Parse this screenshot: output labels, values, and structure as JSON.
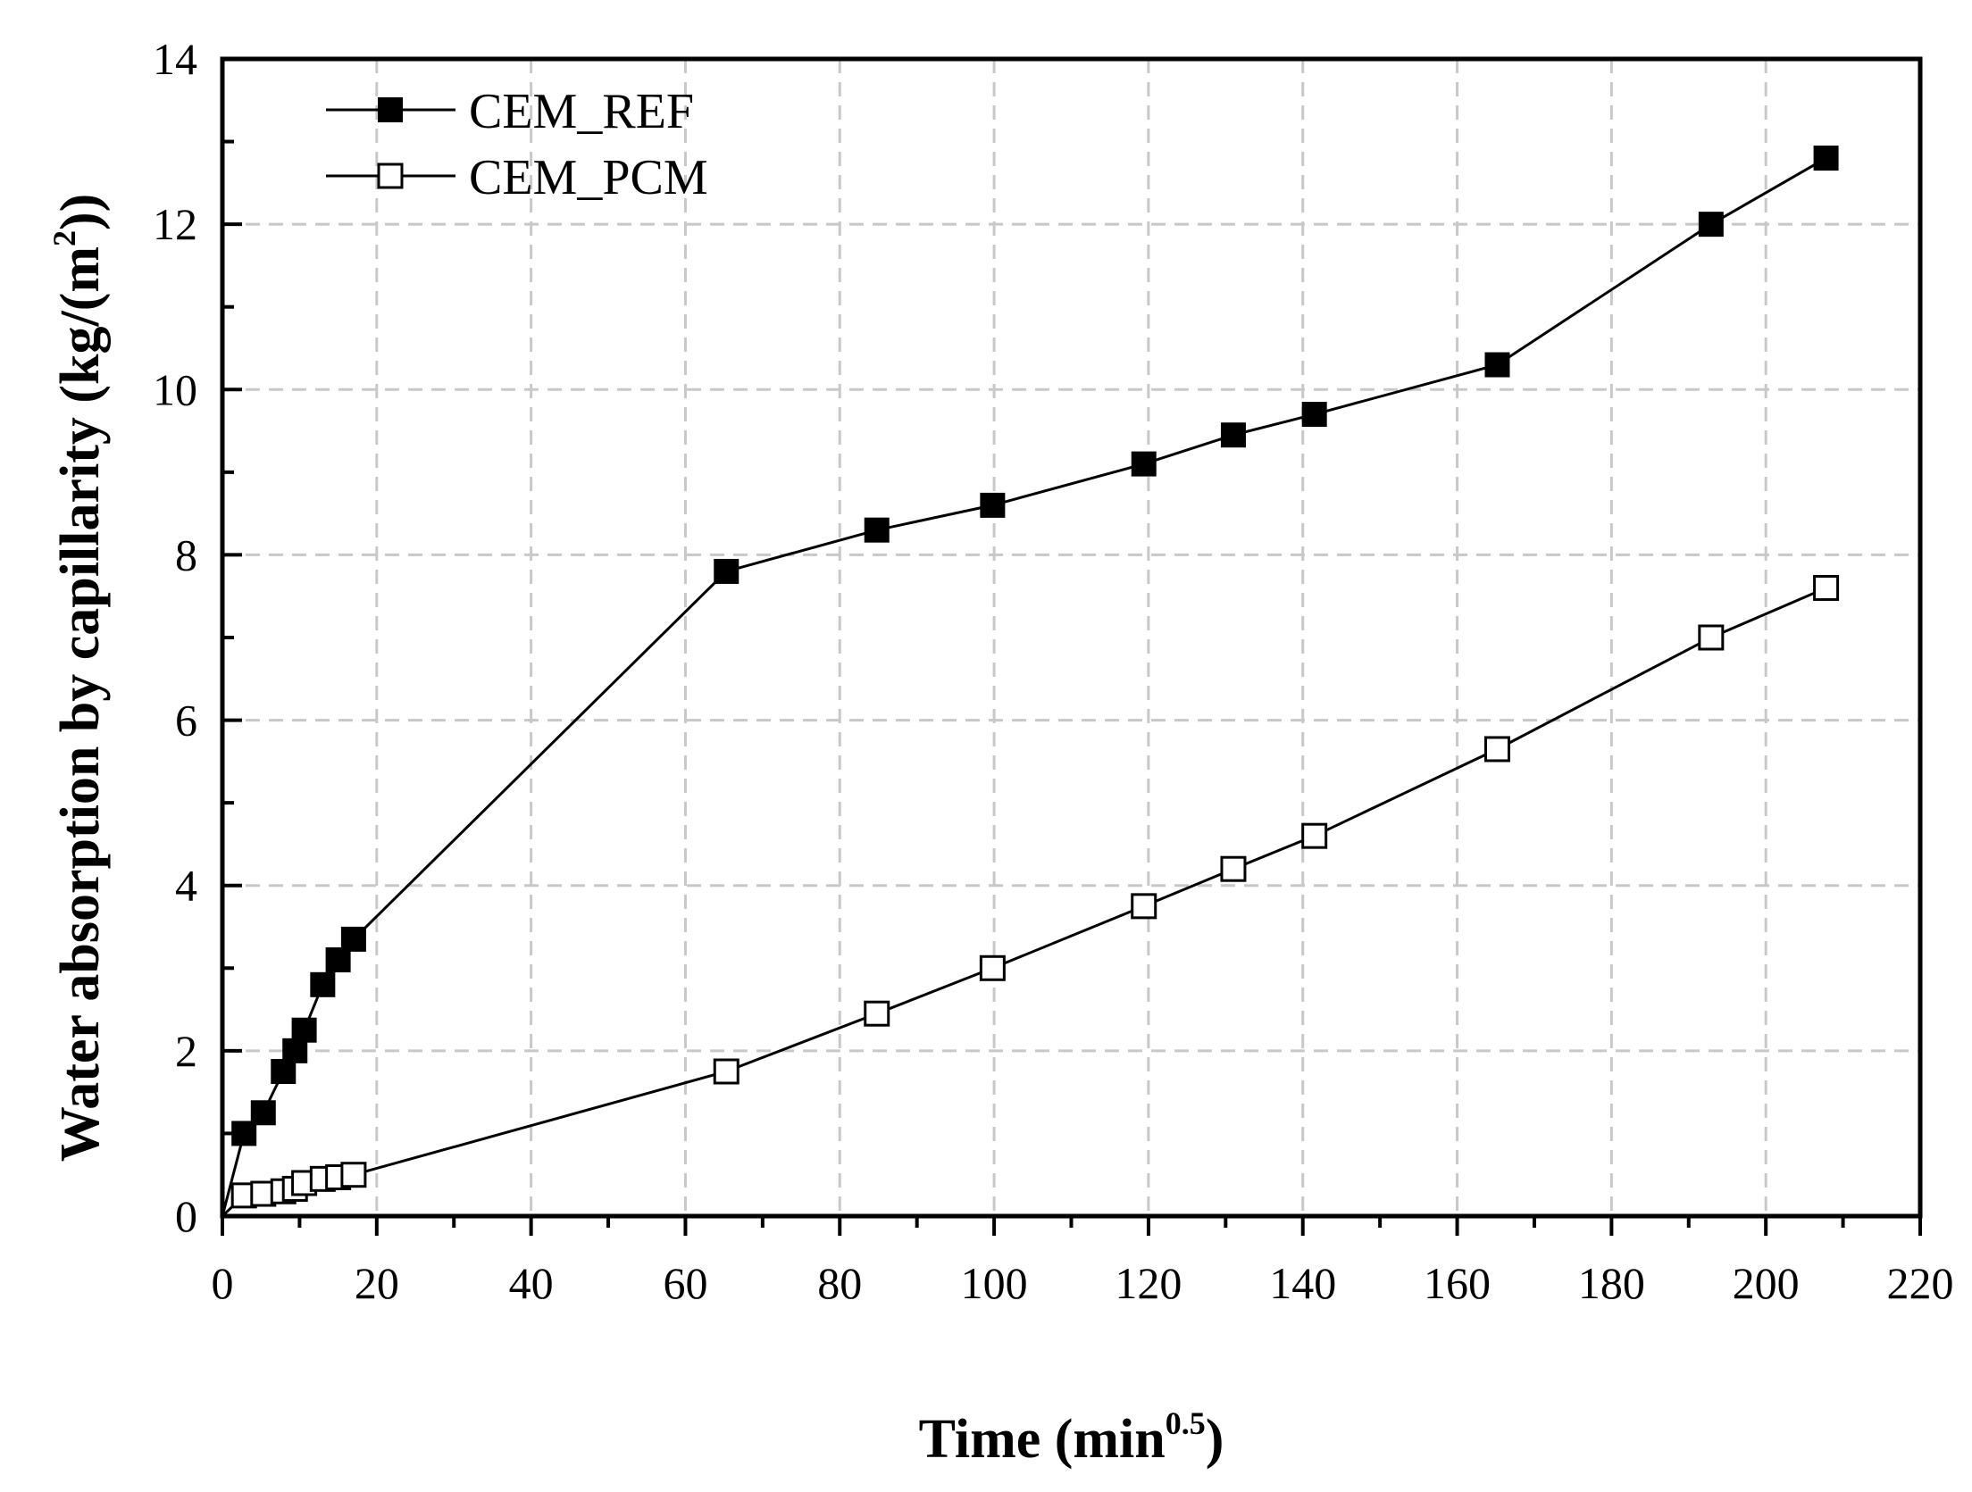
{
  "chart_data": {
    "type": "line",
    "title": "",
    "xlabel": "Time (min",
    "xlabel_sup": "0.5",
    "xlabel_close": ")",
    "ylabel": "Water absorption by capillarity (kg/(m",
    "ylabel_sup": "2",
    "ylabel_close": "))",
    "xlim": [
      0,
      220
    ],
    "ylim": [
      0,
      14
    ],
    "xticks": [
      0,
      20,
      40,
      60,
      80,
      100,
      120,
      140,
      160,
      180,
      200,
      220
    ],
    "yticks": [
      0,
      2,
      4,
      6,
      8,
      10,
      12,
      14
    ],
    "grid": true,
    "legend_position": "top-left",
    "series": [
      {
        "name": "CEM_REF",
        "marker": "filled-square",
        "x": [
          0,
          2.8,
          5.3,
          7.9,
          9.4,
          10.6,
          13,
          15,
          17,
          65.3,
          84.8,
          99.8,
          119.4,
          131,
          141.5,
          165.2,
          192.9,
          207.8
        ],
        "y": [
          0,
          1.0,
          1.25,
          1.75,
          2.0,
          2.25,
          2.8,
          3.1,
          3.35,
          7.8,
          8.3,
          8.6,
          9.1,
          9.45,
          9.7,
          10.3,
          12.0,
          12.8
        ]
      },
      {
        "name": "CEM_PCM",
        "marker": "open-square",
        "x": [
          0,
          2.8,
          5.3,
          7.9,
          9.4,
          10.6,
          13,
          15,
          17,
          65.3,
          84.8,
          99.8,
          119.4,
          131,
          141.5,
          165.2,
          192.9,
          207.8
        ],
        "y": [
          0,
          0.25,
          0.27,
          0.3,
          0.33,
          0.4,
          0.45,
          0.47,
          0.5,
          1.75,
          2.45,
          3.0,
          3.75,
          4.2,
          4.6,
          5.65,
          7.0,
          7.6
        ]
      }
    ]
  }
}
